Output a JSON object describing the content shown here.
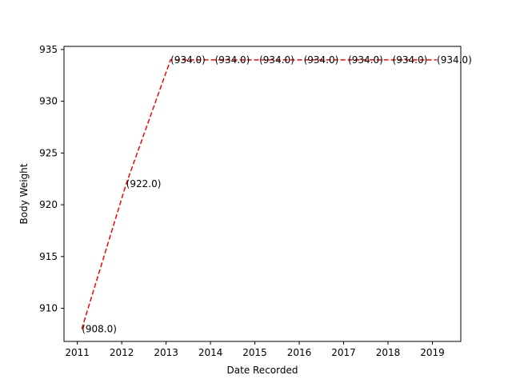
{
  "chart_data": {
    "type": "line",
    "title": "",
    "xlabel": "Date Recorded",
    "ylabel": "Body Weight",
    "x": [
      2011.1,
      2012.1,
      2013.1,
      2014.1,
      2015.1,
      2016.1,
      2017.1,
      2018.1,
      2019.1
    ],
    "x_ticks": [
      "2011",
      "2012",
      "2013",
      "2014",
      "2015",
      "2016",
      "2017",
      "2018",
      "2019"
    ],
    "xlim": [
      2010.7,
      2019.64
    ],
    "ylim": [
      906.8,
      935.3
    ],
    "y_ticks": [
      "910",
      "915",
      "920",
      "925",
      "930",
      "935"
    ],
    "grid": false,
    "legend": "none",
    "series": [
      {
        "values": [
          908.0,
          922.0,
          934.0,
          934.0,
          934.0,
          934.0,
          934.0,
          934.0,
          934.0
        ],
        "color": "#ff0000",
        "line_style": "dashed",
        "data_labels": [
          "(908.0)",
          "(922.0)",
          "(934.0)",
          "(934.0)",
          "(934.0)",
          "(934.0)",
          "(934.0)",
          "(934.0)",
          "(934.0)"
        ]
      }
    ]
  }
}
